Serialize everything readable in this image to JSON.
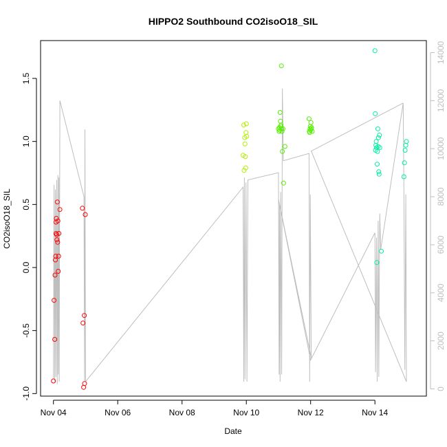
{
  "chart_data": {
    "type": "scatter",
    "title": "HIPPO2 Southbound CO2isoO18_SIL",
    "xlabel": "Date",
    "ylabel": "CO2isoO18_SIL",
    "xlim": [
      -0.4,
      11.6
    ],
    "ylim": [
      -1.02,
      1.8
    ],
    "x_tick_labels": [
      "Nov 04",
      "Nov 06",
      "Nov 08",
      "Nov 10",
      "Nov 12",
      "Nov 14"
    ],
    "x_tick_values": [
      0,
      2,
      4,
      6,
      8,
      10
    ],
    "y_tick_values": [
      -1.0,
      -0.5,
      0.0,
      0.5,
      1.0,
      1.5
    ],
    "y_tick_labels": [
      "-1.0",
      "-0.5",
      "0.0",
      "0.5",
      "1.0",
      "1.5"
    ],
    "right_axis": {
      "ylim": [
        -300,
        14500
      ],
      "tick_values": [
        0,
        2000,
        4000,
        6000,
        8000,
        10000,
        12000,
        14000
      ],
      "tick_labels": [
        "0",
        "2000",
        "4000",
        "6000",
        "8000",
        "10000",
        "12000",
        "14000"
      ],
      "color": "#bebebe"
    },
    "grid": false,
    "series": [
      {
        "color": "#ff0000",
        "points": [
          [
            0.0,
            -0.9
          ],
          [
            0.02,
            -0.26
          ],
          [
            0.04,
            -0.57
          ],
          [
            0.05,
            -0.06
          ],
          [
            0.06,
            0.06
          ],
          [
            0.07,
            0.09
          ],
          [
            0.08,
            0.27
          ],
          [
            0.08,
            0.36
          ],
          [
            0.09,
            0.39
          ],
          [
            0.1,
            0.26
          ],
          [
            0.11,
            0.22
          ],
          [
            0.12,
            0.52
          ],
          [
            0.13,
            0.2
          ],
          [
            0.14,
            0.37
          ],
          [
            0.15,
            -0.03
          ],
          [
            0.16,
            0.09
          ],
          [
            0.17,
            0.27
          ],
          [
            0.2,
            0.46
          ],
          [
            0.9,
            0.47
          ],
          [
            0.92,
            -0.44
          ],
          [
            0.94,
            -0.95
          ],
          [
            0.96,
            -0.38
          ],
          [
            0.97,
            -0.92
          ],
          [
            0.99,
            0.42
          ]
        ]
      },
      {
        "color": "#b2ee00",
        "points": [
          [
            5.9,
            0.89
          ],
          [
            5.92,
            1.13
          ],
          [
            5.93,
            0.77
          ],
          [
            5.95,
            1.03
          ],
          [
            5.96,
            0.98
          ],
          [
            5.97,
            0.88
          ],
          [
            5.98,
            0.79
          ],
          [
            5.99,
            1.07
          ],
          [
            6.0,
            1.14
          ],
          [
            6.01,
            1.04
          ]
        ]
      },
      {
        "color": "#55ee00",
        "points": [
          [
            7.0,
            1.1
          ],
          [
            7.02,
            1.08
          ],
          [
            7.03,
            1.11
          ],
          [
            7.04,
            1.09
          ],
          [
            7.05,
            1.23
          ],
          [
            7.06,
            1.16
          ],
          [
            7.07,
            1.12
          ],
          [
            7.08,
            1.13
          ],
          [
            7.09,
            1.6
          ],
          [
            7.1,
            1.1
          ],
          [
            7.11,
            1.08
          ],
          [
            7.12,
            0.92
          ],
          [
            7.14,
            1.1
          ],
          [
            7.16,
            0.67
          ],
          [
            7.2,
            0.96
          ],
          [
            7.95,
            1.18
          ],
          [
            7.96,
            1.08
          ],
          [
            7.97,
            1.07
          ],
          [
            7.98,
            1.1
          ],
          [
            7.99,
            1.12
          ],
          [
            8.0,
            1.09
          ],
          [
            8.01,
            1.15
          ],
          [
            8.02,
            1.1
          ],
          [
            8.03,
            1.11
          ],
          [
            8.05,
            1.08
          ]
        ]
      },
      {
        "color": "#00eea0",
        "points": [
          [
            10.0,
            1.72
          ],
          [
            10.01,
            1.22
          ],
          [
            10.02,
            0.93
          ],
          [
            10.03,
            0.97
          ],
          [
            10.04,
            1.0
          ],
          [
            10.05,
            0.95
          ],
          [
            10.06,
            0.04
          ],
          [
            10.07,
            0.82
          ],
          [
            10.08,
            0.92
          ],
          [
            10.09,
            1.1
          ],
          [
            10.1,
            0.96
          ],
          [
            10.11,
            1.03
          ],
          [
            10.12,
            0.76
          ],
          [
            10.13,
            0.74
          ],
          [
            10.14,
            1.05
          ],
          [
            10.15,
            0.95
          ],
          [
            10.2,
            0.13
          ],
          [
            10.9,
            0.72
          ],
          [
            10.92,
            0.83
          ],
          [
            10.94,
            0.93
          ],
          [
            10.96,
            0.97
          ],
          [
            10.98,
            1.0
          ]
        ]
      }
    ],
    "altitude_trace": {
      "color": "#bebebe",
      "points": [
        [
          0.0,
          400
        ],
        [
          0.02,
          8500
        ],
        [
          0.04,
          300
        ],
        [
          0.06,
          8300
        ],
        [
          0.08,
          500
        ],
        [
          0.1,
          8700
        ],
        [
          0.12,
          200
        ],
        [
          0.14,
          8900
        ],
        [
          0.15,
          600
        ],
        [
          0.17,
          8800
        ],
        [
          0.18,
          300
        ],
        [
          0.2,
          12000
        ],
        [
          0.95,
          8000
        ],
        [
          0.97,
          300
        ],
        [
          0.98,
          10800
        ],
        [
          1.0,
          300
        ],
        [
          5.9,
          8400
        ],
        [
          5.92,
          300
        ],
        [
          5.94,
          8800
        ],
        [
          5.96,
          400
        ],
        [
          5.99,
          8600
        ],
        [
          6.02,
          300
        ],
        [
          6.05,
          8700
        ],
        [
          7.0,
          9000
        ],
        [
          7.02,
          600
        ],
        [
          7.03,
          7700
        ],
        [
          7.05,
          300
        ],
        [
          7.07,
          8200
        ],
        [
          7.1,
          600
        ],
        [
          7.12,
          12500
        ],
        [
          7.15,
          9500
        ],
        [
          7.95,
          9800
        ],
        [
          7.97,
          300
        ],
        [
          7.99,
          8100
        ],
        [
          8.02,
          1300
        ],
        [
          7.0,
          7900
        ],
        [
          8.0,
          1200
        ],
        [
          10.0,
          6500
        ],
        [
          10.02,
          700
        ],
        [
          10.05,
          6300
        ],
        [
          10.07,
          300
        ],
        [
          10.1,
          7000
        ],
        [
          10.12,
          500
        ],
        [
          10.15,
          7300
        ],
        [
          10.18,
          5800
        ],
        [
          10.88,
          11900
        ],
        [
          10.9,
          8300
        ],
        [
          10.93,
          800
        ],
        [
          10.96,
          8100
        ],
        [
          10.98,
          300
        ],
        [
          8.02,
          9900
        ],
        [
          10.88,
          11900
        ]
      ]
    }
  }
}
